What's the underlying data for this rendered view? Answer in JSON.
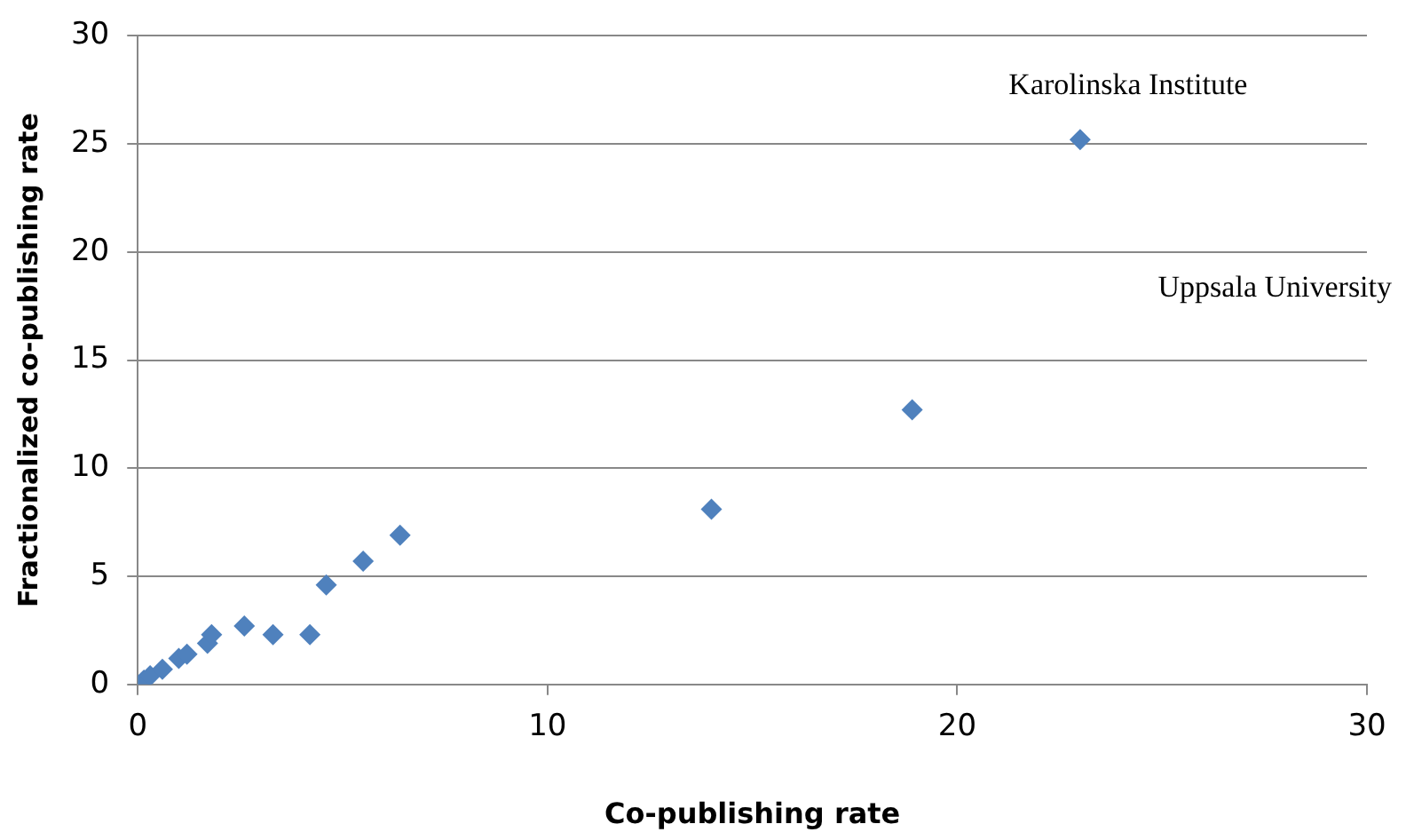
{
  "chart_data": {
    "type": "scatter",
    "xlabel": "Co-publishing rate",
    "ylabel": "Fractionalized co-publishing rate",
    "series": [
      {
        "color": "#4f81bd",
        "x": [
          0.15,
          0.3,
          0.6,
          1.0,
          1.2,
          1.7,
          1.8,
          2.6,
          3.3,
          4.2,
          4.6,
          5.5,
          6.4,
          14.0,
          18.9,
          23.0
        ],
        "values": [
          0.2,
          0.4,
          0.7,
          1.2,
          1.4,
          1.9,
          2.3,
          2.7,
          2.3,
          2.3,
          4.6,
          5.7,
          6.9,
          8.1,
          12.7,
          25.2
        ]
      }
    ],
    "xlim": [
      0,
      30
    ],
    "xticks": [
      0,
      10,
      20,
      30
    ],
    "ylim": [
      0,
      30
    ],
    "yticks": [
      0,
      5,
      10,
      15,
      20,
      25,
      30
    ],
    "grid": "y",
    "marker": "diamond",
    "legend": false,
    "annotations": [
      {
        "text": "Karolinska Institute",
        "x": 23.0,
        "y": 25.2
      },
      "Uppsala University"
    ]
  }
}
